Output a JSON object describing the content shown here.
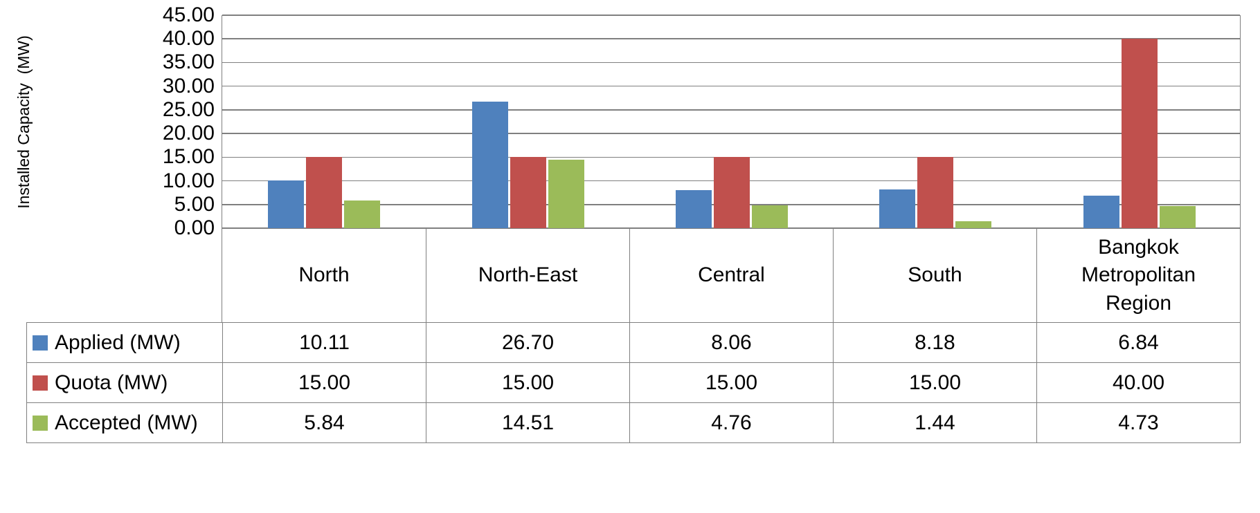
{
  "chart_data": {
    "type": "bar",
    "ylabel": "Installed Capacity  (MW)",
    "xlabel": "",
    "ylim": [
      0,
      45
    ],
    "ytick_step": 5,
    "ytick_format": "2dp",
    "grid": true,
    "legend_position": "table-left",
    "categories": [
      "North",
      "North-East",
      "Central",
      "South",
      "Bangkok Metropolitan Region"
    ],
    "series": [
      {
        "name": "Applied (MW)",
        "color": "#4F81BD",
        "values": [
          10.11,
          26.7,
          8.06,
          8.18,
          6.84
        ]
      },
      {
        "name": "Quota (MW)",
        "color": "#C0504D",
        "values": [
          15.0,
          15.0,
          15.0,
          15.0,
          40.0
        ]
      },
      {
        "name": "Accepted (MW)",
        "color": "#9BBB59",
        "values": [
          5.84,
          14.51,
          4.76,
          1.44,
          4.73
        ]
      }
    ]
  },
  "table": {
    "rows": [
      {
        "label": "Applied (MW)",
        "values": [
          "10.11",
          "26.70",
          "8.06",
          "8.18",
          "6.84"
        ]
      },
      {
        "label": "Quota (MW)",
        "values": [
          "15.00",
          "15.00",
          "15.00",
          "15.00",
          "40.00"
        ]
      },
      {
        "label": "Accepted (MW)",
        "values": [
          "5.84",
          "14.51",
          "4.76",
          "1.44",
          "4.73"
        ]
      }
    ]
  },
  "colors": {
    "applied": "#4F81BD",
    "quota": "#C0504D",
    "accepted": "#9BBB59",
    "gridline": "#7F7F7F",
    "border": "#7F7F7F"
  }
}
